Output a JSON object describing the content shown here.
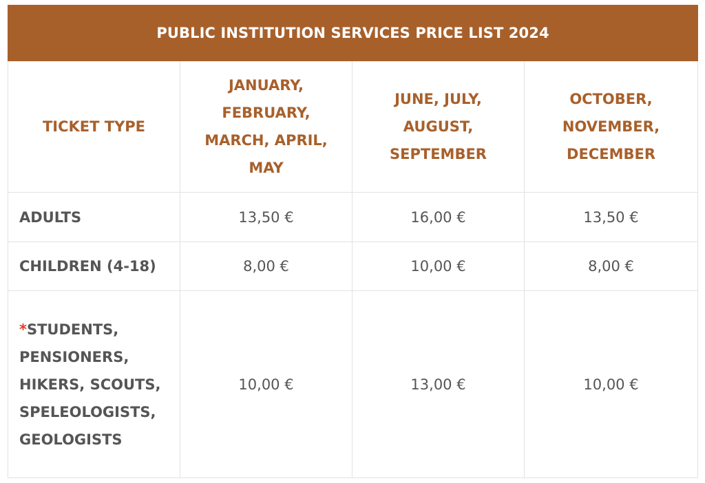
{
  "title": "PUBLIC INSTITUTION SERVICES PRICE LIST 2024",
  "headers": {
    "ticket_type": "TICKET TYPE",
    "period_1": "JANUARY, FEBRUARY, MARCH, APRIL, MAY",
    "period_2": "JUNE, JULY, AUGUST, SEPTEMBER",
    "period_3": "OCTOBER, NOVEMBER, DECEMBER"
  },
  "rows": [
    {
      "label": "ADULTS",
      "asterisk": "",
      "prices": [
        "13,50 €",
        "16,00 €",
        "13,50 €"
      ]
    },
    {
      "label": "CHILDREN (4-18)",
      "asterisk": "",
      "prices": [
        "8,00 €",
        "10,00 €",
        "8,00 €"
      ]
    },
    {
      "label": "STUDENTS, PENSIONERS, HIKERS, SCOUTS, SPELEOLOGISTS, GEOLOGISTS",
      "asterisk": "*",
      "prices": [
        "10,00 €",
        "13,00 €",
        "10,00 €"
      ]
    }
  ],
  "colors": {
    "accent": "#a8602b",
    "asterisk": "#e53a2a",
    "text": "#555555",
    "border": "#e2e2e2"
  }
}
